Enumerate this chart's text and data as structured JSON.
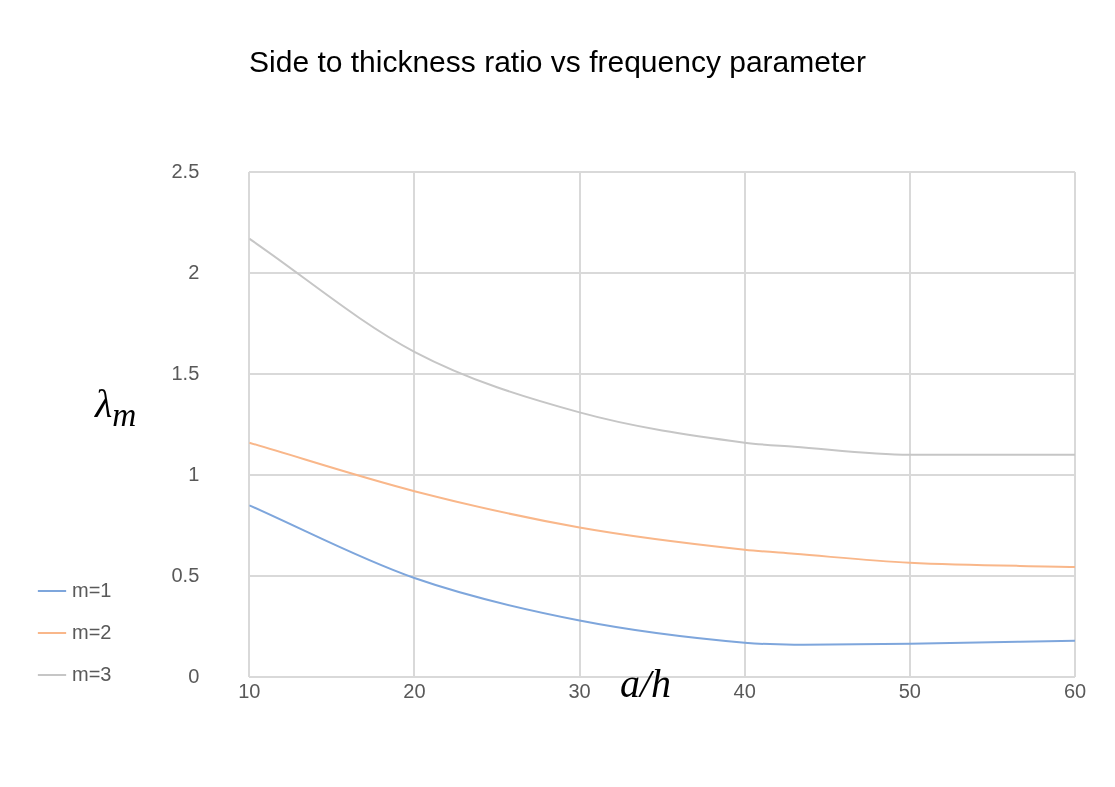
{
  "chart_data": {
    "type": "line",
    "title": "Side to thickness ratio vs frequency parameter",
    "xlabel": "a/h",
    "ylabel": "λ$_{m}$",
    "x": [
      10,
      20,
      30,
      40,
      43,
      50,
      60
    ],
    "series": [
      {
        "name": "m=1",
        "color": "#7ea6dc",
        "values": [
          0.85,
          0.49,
          0.28,
          0.17,
          0.16,
          0.165,
          0.18
        ]
      },
      {
        "name": "m=2",
        "color": "#f9b78a",
        "values": [
          1.16,
          0.92,
          0.74,
          0.63,
          0.61,
          0.565,
          0.545
        ]
      },
      {
        "name": "m=3",
        "color": "#c6c6c6",
        "values": [
          2.17,
          1.61,
          1.31,
          1.16,
          1.14,
          1.1,
          1.1
        ]
      }
    ],
    "xlim": [
      10,
      60
    ],
    "xticks": [
      10,
      20,
      30,
      40,
      50,
      60
    ],
    "ylim": [
      0,
      2.5
    ],
    "yticks": [
      0,
      0.5,
      1,
      1.5,
      2,
      2.5
    ],
    "grid": true,
    "legend": "bottom left",
    "marker": "none",
    "line_style": "solid"
  }
}
